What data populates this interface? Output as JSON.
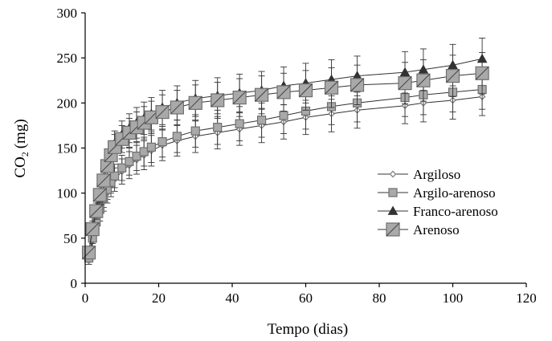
{
  "chart_data": {
    "type": "scatter",
    "xlabel": "Tempo (dias)",
    "ylabel_main": "CO",
    "ylabel_sub": "2",
    "ylabel_unit": "(mg)",
    "xlim": [
      0,
      120
    ],
    "ylim": [
      0,
      300
    ],
    "xticks": [
      "0",
      "20",
      "40",
      "60",
      "80",
      "100",
      "120"
    ],
    "yticks": [
      "0",
      "50",
      "100",
      "150",
      "200",
      "250",
      "300"
    ],
    "grid": false,
    "legend_position": "right",
    "x": [
      1,
      2,
      3,
      4,
      5,
      6,
      7,
      8,
      10,
      12,
      14,
      16,
      18,
      21,
      25,
      30,
      36,
      42,
      48,
      54,
      60,
      67,
      74,
      87,
      92,
      100,
      108
    ],
    "series": [
      {
        "name": "Argiloso",
        "marker": "diamond",
        "fill": "#ffffff",
        "stroke": "#777777",
        "size": 7,
        "values": [
          25,
          47,
          64,
          78,
          90,
          100,
          108,
          115,
          124,
          131,
          137,
          142,
          147,
          153,
          158,
          163,
          167,
          171,
          175,
          179,
          184,
          188,
          192,
          197,
          200,
          203,
          207
        ],
        "errors": [
          4,
          6,
          8,
          9,
          10,
          11,
          12,
          13,
          14,
          15,
          16,
          16,
          17,
          17,
          17,
          18,
          18,
          18,
          19,
          19,
          19,
          20,
          20,
          20,
          21,
          21,
          21
        ]
      },
      {
        "name": "Argilo-arenoso",
        "marker": "square",
        "fill": "#a9a9a9",
        "stroke": "#6f6f6f",
        "size": 10,
        "values": [
          28,
          50,
          68,
          82,
          94,
          104,
          112,
          119,
          128,
          135,
          141,
          146,
          151,
          157,
          163,
          169,
          173,
          177,
          181,
          186,
          191,
          196,
          200,
          206,
          209,
          212,
          215
        ],
        "errors": [
          4,
          6,
          8,
          9,
          10,
          11,
          12,
          13,
          14,
          15,
          16,
          16,
          17,
          17,
          18,
          18,
          19,
          19,
          19,
          20,
          20,
          20,
          21,
          21,
          22,
          22,
          22
        ]
      },
      {
        "name": "Franco-arenoso",
        "marker": "triangle",
        "fill": "#333333",
        "stroke": "#333333",
        "size": 11,
        "values": [
          35,
          62,
          82,
          100,
          116,
          132,
          145,
          155,
          165,
          172,
          178,
          183,
          188,
          195,
          200,
          205,
          208,
          211,
          214,
          219,
          222,
          226,
          230,
          234,
          237,
          242,
          249
        ],
        "errors": [
          5,
          7,
          9,
          10,
          11,
          12,
          13,
          14,
          15,
          16,
          17,
          18,
          18,
          19,
          19,
          20,
          20,
          21,
          21,
          21,
          22,
          22,
          22,
          23,
          23,
          23,
          23
        ]
      },
      {
        "name": "Arenoso",
        "marker": "big-square",
        "fill": "#a9a9a9",
        "stroke": "#6f6f6f",
        "size": 16,
        "values": [
          34,
          60,
          80,
          98,
          114,
          130,
          142,
          151,
          160,
          167,
          173,
          178,
          184,
          190,
          195,
          200,
          203,
          206,
          209,
          212,
          214,
          217,
          220,
          222,
          225,
          230,
          233
        ],
        "errors": [
          5,
          7,
          9,
          10,
          11,
          12,
          13,
          14,
          15,
          16,
          17,
          18,
          18,
          19,
          19,
          20,
          20,
          21,
          21,
          21,
          22,
          22,
          22,
          23,
          23,
          23,
          23
        ]
      }
    ]
  }
}
